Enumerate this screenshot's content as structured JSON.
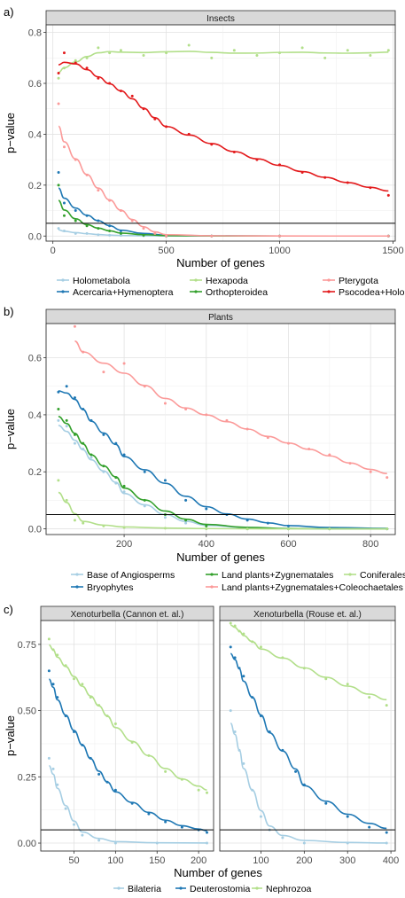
{
  "chart_data": [
    {
      "id": "a",
      "panel_letter": "a)",
      "type": "scatter",
      "trend": "loess",
      "facets": [
        "Insects"
      ],
      "xlabel": "Number of genes",
      "ylabel": "p−value",
      "xlim": [
        -30,
        1510
      ],
      "ylim": [
        -0.02,
        0.83
      ],
      "xticks": [
        0,
        500,
        1000,
        1500
      ],
      "xtick_labels": [
        "0",
        "500",
        "1000",
        "1500"
      ],
      "yticks": [
        0.0,
        0.2,
        0.4,
        0.6,
        0.8
      ],
      "ytick_labels": [
        "0.0",
        "0.2",
        "0.4",
        "0.6",
        "0.8"
      ],
      "hline": 0.05,
      "grid": true,
      "legend_position": "bottom",
      "legend_columns": 3,
      "series": [
        {
          "name": "Holometabola",
          "color": "#a6cee3",
          "facet": 0,
          "x": [
            25,
            50,
            100,
            150,
            200,
            250,
            300,
            400,
            500,
            700,
            1000,
            1480
          ],
          "y": [
            0.03,
            0.02,
            0.01,
            0.01,
            0.005,
            0.003,
            0.002,
            0.001,
            0.0,
            0.0,
            0.0,
            0.0
          ]
        },
        {
          "name": "Acercaria+Hymenoptera",
          "color": "#1f78b4",
          "facet": 0,
          "x": [
            25,
            50,
            100,
            150,
            200,
            250,
            300,
            400,
            500,
            700,
            1000,
            1480
          ],
          "y": [
            0.25,
            0.13,
            0.1,
            0.08,
            0.06,
            0.04,
            0.02,
            0.005,
            0.0,
            0.0,
            0.0,
            0.0
          ]
        },
        {
          "name": "Hexapoda",
          "color": "#b2df8a",
          "facet": 0,
          "x": [
            25,
            50,
            100,
            150,
            200,
            250,
            300,
            400,
            500,
            600,
            700,
            800,
            900,
            1000,
            1100,
            1200,
            1300,
            1400,
            1480
          ],
          "y": [
            0.62,
            0.66,
            0.69,
            0.7,
            0.74,
            0.72,
            0.73,
            0.71,
            0.72,
            0.75,
            0.7,
            0.73,
            0.71,
            0.72,
            0.74,
            0.7,
            0.73,
            0.71,
            0.73
          ]
        },
        {
          "name": "Orthopteroidea",
          "color": "#33a02c",
          "facet": 0,
          "x": [
            25,
            50,
            100,
            150,
            200,
            250,
            300,
            400,
            500,
            700,
            1000,
            1480
          ],
          "y": [
            0.2,
            0.08,
            0.06,
            0.04,
            0.03,
            0.02,
            0.01,
            0.003,
            0.0,
            0.0,
            0.0,
            0.0
          ]
        },
        {
          "name": "Pterygota",
          "color": "#fb9a99",
          "facet": 0,
          "x": [
            25,
            50,
            100,
            150,
            200,
            250,
            300,
            350,
            400,
            450,
            500,
            700,
            1000,
            1480
          ],
          "y": [
            0.52,
            0.35,
            0.3,
            0.24,
            0.18,
            0.14,
            0.1,
            0.06,
            0.03,
            0.01,
            0.0,
            0.0,
            0.0,
            0.0
          ]
        },
        {
          "name": "Psocodea+Holometabola",
          "color": "#e31a1c",
          "facet": 0,
          "x": [
            25,
            50,
            100,
            150,
            200,
            250,
            300,
            350,
            400,
            450,
            500,
            600,
            700,
            800,
            900,
            1000,
            1100,
            1200,
            1300,
            1400,
            1480
          ],
          "y": [
            0.64,
            0.72,
            0.68,
            0.66,
            0.62,
            0.6,
            0.57,
            0.55,
            0.5,
            0.46,
            0.43,
            0.4,
            0.36,
            0.33,
            0.3,
            0.28,
            0.25,
            0.23,
            0.21,
            0.19,
            0.16
          ]
        }
      ],
      "legend_order": [
        "Holometabola",
        "Hexapoda",
        "Pterygota",
        "Acercaria+Hymenoptera",
        "Orthopteroidea",
        "Psocodea+Holometabola"
      ]
    },
    {
      "id": "b",
      "panel_letter": "b)",
      "type": "scatter",
      "trend": "loess",
      "facets": [
        "Plants"
      ],
      "xlabel": "Number of genes",
      "ylabel": "p−value",
      "xlim": [
        10,
        860
      ],
      "ylim": [
        -0.02,
        0.72
      ],
      "xticks": [
        200,
        400,
        600,
        800
      ],
      "xtick_labels": [
        "200",
        "400",
        "600",
        "800"
      ],
      "yticks": [
        0.0,
        0.2,
        0.4,
        0.6
      ],
      "ytick_labels": [
        "0.0",
        "0.2",
        "0.4",
        "0.6"
      ],
      "hline": 0.05,
      "grid": true,
      "legend_position": "bottom",
      "legend_columns": 3,
      "series": [
        {
          "name": "Base of Angiosperms",
          "color": "#a6cee3",
          "facet": 0,
          "x": [
            40,
            60,
            80,
            100,
            120,
            150,
            180,
            200,
            250,
            300,
            350,
            400,
            500,
            600,
            700,
            840
          ],
          "y": [
            0.38,
            0.36,
            0.3,
            0.28,
            0.25,
            0.2,
            0.16,
            0.13,
            0.08,
            0.04,
            0.02,
            0.01,
            0.0,
            0.0,
            0.0,
            0.0
          ]
        },
        {
          "name": "Bryophytes",
          "color": "#1f78b4",
          "facet": 0,
          "x": [
            40,
            60,
            80,
            100,
            120,
            150,
            180,
            200,
            250,
            300,
            350,
            400,
            450,
            500,
            550,
            600,
            700,
            840
          ],
          "y": [
            0.48,
            0.5,
            0.46,
            0.42,
            0.38,
            0.33,
            0.3,
            0.26,
            0.2,
            0.17,
            0.1,
            0.07,
            0.05,
            0.03,
            0.02,
            0.01,
            0.0,
            0.0
          ]
        },
        {
          "name": "Land plants+Zygnematales",
          "color": "#33a02c",
          "facet": 0,
          "x": [
            40,
            60,
            80,
            100,
            120,
            150,
            180,
            200,
            250,
            300,
            350,
            400,
            500,
            600,
            700,
            840
          ],
          "y": [
            0.42,
            0.38,
            0.33,
            0.3,
            0.26,
            0.22,
            0.18,
            0.15,
            0.1,
            0.05,
            0.03,
            0.01,
            0.0,
            0.0,
            0.0,
            0.0
          ]
        },
        {
          "name": "Land plants+Zygnematales+Coleochaetales",
          "color": "#fb9a99",
          "facet": 0,
          "x": [
            80,
            100,
            150,
            200,
            250,
            300,
            350,
            400,
            450,
            500,
            550,
            600,
            650,
            700,
            750,
            800,
            840
          ],
          "y": [
            0.71,
            0.62,
            0.55,
            0.58,
            0.5,
            0.44,
            0.42,
            0.4,
            0.38,
            0.35,
            0.32,
            0.3,
            0.28,
            0.26,
            0.23,
            0.2,
            0.18
          ]
        },
        {
          "name": "Coniferales",
          "color": "#b2df8a",
          "facet": 0,
          "x": [
            40,
            60,
            80,
            100,
            150,
            200,
            300,
            400,
            500,
            600,
            700,
            840
          ],
          "y": [
            0.17,
            0.1,
            0.03,
            0.02,
            0.01,
            0.005,
            0.002,
            0.0,
            0.0,
            0.0,
            0.0,
            0.0
          ]
        }
      ],
      "legend_order": [
        "Base of Angiosperms",
        "Land plants+Zygnematales",
        "Coniferales",
        "Bryophytes",
        "Land plants+Zygnematales+Coleochaetales"
      ]
    },
    {
      "id": "c",
      "panel_letter": "c)",
      "type": "scatter",
      "trend": "loess",
      "facets": [
        "Xenoturbella (Cannon et. al.)",
        "Xenoturbella (Rouse et. al.)"
      ],
      "xlabel": "Number of genes",
      "ylabel": "p−value",
      "ylim": [
        -0.03,
        0.84
      ],
      "yticks": [
        0.0,
        0.25,
        0.5,
        0.75
      ],
      "ytick_labels": [
        "0.00",
        "0.25",
        "0.50",
        "0.75"
      ],
      "facet_xlim": [
        [
          10,
          218
        ],
        [
          5,
          410
        ]
      ],
      "facet_xticks": [
        [
          50,
          100,
          150,
          200
        ],
        [
          100,
          200,
          300,
          400
        ]
      ],
      "facet_xtick_labels": [
        [
          "50",
          "100",
          "150",
          "200"
        ],
        [
          "100",
          "200",
          "300",
          "400"
        ]
      ],
      "hline": 0.05,
      "grid": true,
      "legend_position": "bottom",
      "legend_columns": 3,
      "series": [
        {
          "name": "Bilateria",
          "color": "#a6cee3",
          "facet": 0,
          "x": [
            20,
            25,
            30,
            40,
            50,
            60,
            80,
            100,
            150,
            210
          ],
          "y": [
            0.32,
            0.28,
            0.22,
            0.13,
            0.07,
            0.03,
            0.01,
            0.0,
            0.0,
            0.0
          ]
        },
        {
          "name": "Deuterostomia",
          "color": "#1f78b4",
          "facet": 0,
          "x": [
            20,
            25,
            30,
            40,
            50,
            60,
            70,
            80,
            90,
            100,
            120,
            140,
            160,
            180,
            200,
            210
          ],
          "y": [
            0.65,
            0.6,
            0.55,
            0.48,
            0.42,
            0.37,
            0.32,
            0.26,
            0.23,
            0.2,
            0.15,
            0.11,
            0.08,
            0.06,
            0.05,
            0.04
          ]
        },
        {
          "name": "Nephrozoa",
          "color": "#b2df8a",
          "facet": 0,
          "x": [
            20,
            25,
            30,
            40,
            50,
            60,
            70,
            80,
            90,
            100,
            120,
            140,
            160,
            180,
            200,
            210
          ],
          "y": [
            0.77,
            0.73,
            0.71,
            0.67,
            0.62,
            0.6,
            0.55,
            0.52,
            0.48,
            0.45,
            0.38,
            0.33,
            0.27,
            0.24,
            0.2,
            0.19
          ]
        },
        {
          "name": "Bilateria",
          "color": "#a6cee3",
          "facet": 1,
          "x": [
            30,
            40,
            50,
            60,
            80,
            100,
            120,
            150,
            200,
            300,
            390
          ],
          "y": [
            0.5,
            0.42,
            0.35,
            0.3,
            0.2,
            0.1,
            0.05,
            0.02,
            0.0,
            0.0,
            0.0
          ]
        },
        {
          "name": "Deuterostomia",
          "color": "#1f78b4",
          "facet": 1,
          "x": [
            30,
            40,
            50,
            60,
            80,
            100,
            120,
            150,
            180,
            200,
            250,
            300,
            350,
            390
          ],
          "y": [
            0.74,
            0.7,
            0.66,
            0.63,
            0.55,
            0.48,
            0.42,
            0.35,
            0.27,
            0.22,
            0.15,
            0.1,
            0.06,
            0.04
          ]
        },
        {
          "name": "Nephrozoa",
          "color": "#b2df8a",
          "facet": 1,
          "x": [
            30,
            40,
            50,
            60,
            80,
            100,
            150,
            200,
            250,
            300,
            350,
            390
          ],
          "y": [
            0.83,
            0.82,
            0.8,
            0.79,
            0.76,
            0.74,
            0.7,
            0.66,
            0.62,
            0.6,
            0.55,
            0.52
          ]
        }
      ],
      "legend_order": [
        "Bilateria",
        "Deuterostomia",
        "Nephrozoa"
      ]
    }
  ]
}
